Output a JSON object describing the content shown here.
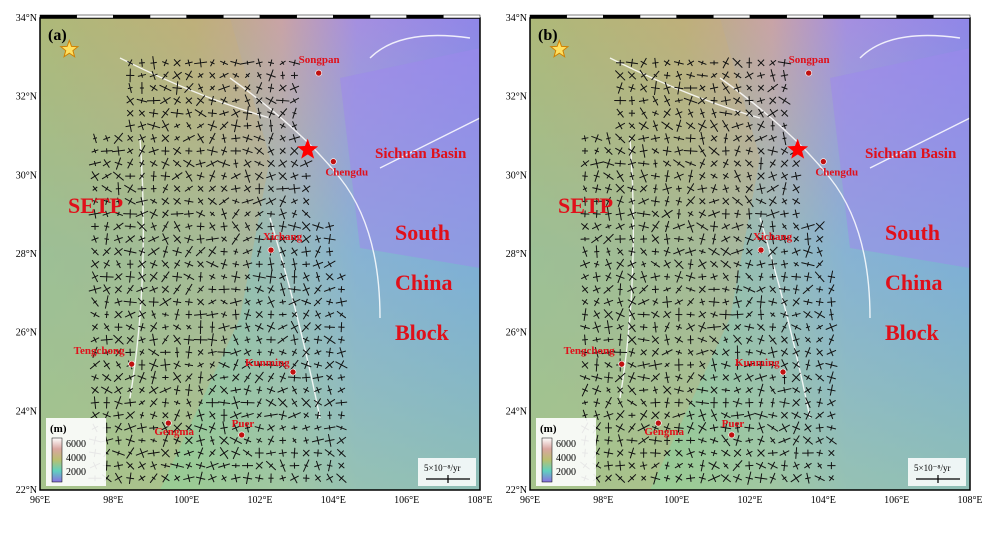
{
  "panels": [
    {
      "label": "(a)"
    },
    {
      "label": "(b)"
    }
  ],
  "lat_labels": [
    "22°N",
    "24°N",
    "26°N",
    "28°N",
    "30°N",
    "32°N",
    "34°N"
  ],
  "lon_labels": [
    "96°E",
    "98°E",
    "100°E",
    "102°E",
    "104°E",
    "106°E",
    "108°E"
  ],
  "cities": [
    "Songpan",
    "Chengdu",
    "Xichang",
    "Tengchong",
    "Kunming",
    "Gengma",
    "Puer"
  ],
  "regions": [
    "SETP",
    "Sichuan Basin",
    "South",
    "China",
    "Block"
  ],
  "legend": {
    "unit": "(m)",
    "ticks": [
      "6000",
      "4000",
      "2000"
    ]
  },
  "scale": "5×10⁻⁸/yr"
}
